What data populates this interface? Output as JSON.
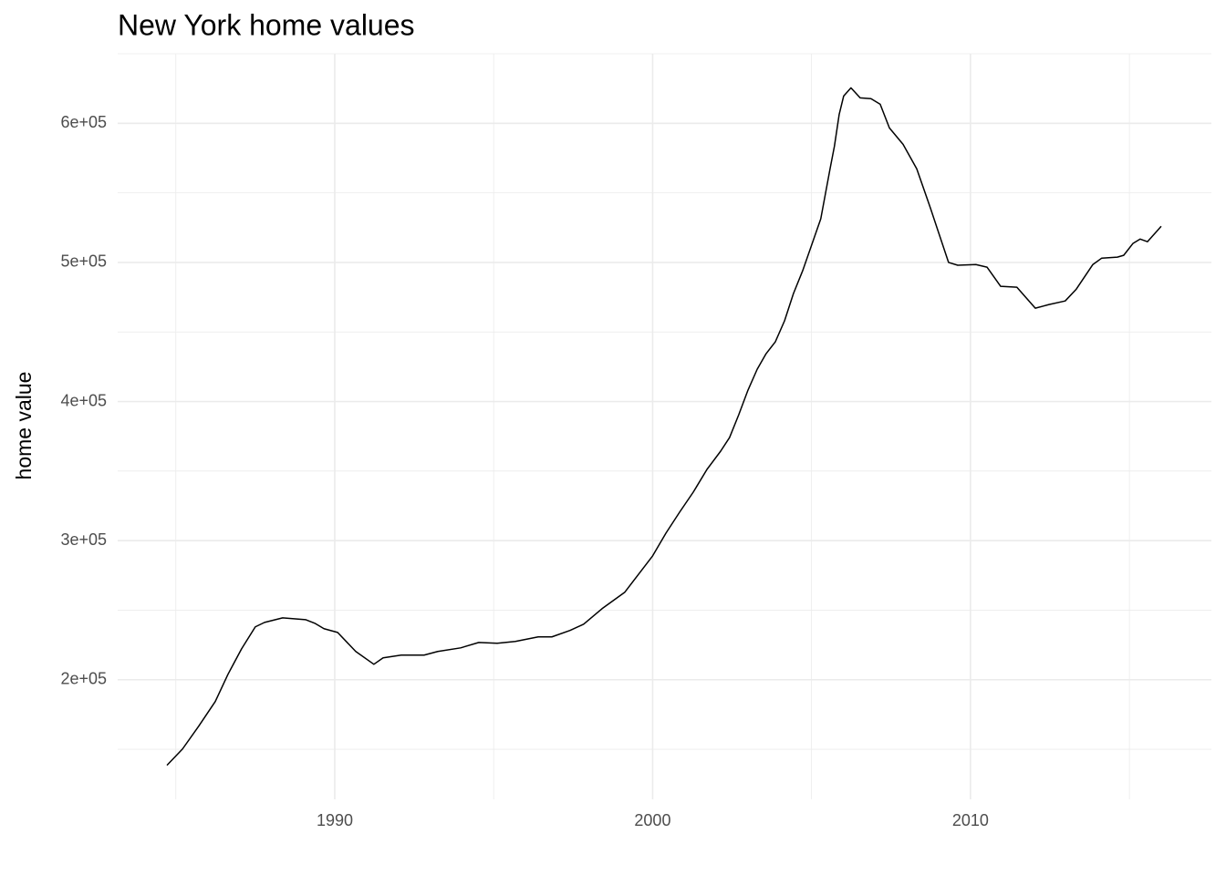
{
  "chart_data": {
    "type": "line",
    "title": "New York home values",
    "y_label": "home value",
    "x": [
      1984.72,
      1985.21,
      1985.72,
      1986.24,
      1986.64,
      1987.07,
      1987.5,
      1987.79,
      1988.36,
      1989.08,
      1989.37,
      1989.66,
      1990.09,
      1990.66,
      1991.23,
      1991.52,
      1992.09,
      1992.81,
      1993.24,
      1993.96,
      1994.53,
      1995.11,
      1995.68,
      1996.4,
      1996.83,
      1997.4,
      1997.83,
      1998.41,
      1999.12,
      1999.56,
      2000.0,
      2000.42,
      2000.85,
      2001.28,
      2001.71,
      2002.14,
      2002.42,
      2002.71,
      2003.0,
      2003.29,
      2003.57,
      2003.86,
      2004.15,
      2004.43,
      2004.72,
      2005.01,
      2005.29,
      2005.58,
      2005.72,
      2005.87,
      2006.01,
      2006.24,
      2006.53,
      2006.87,
      2007.16,
      2007.45,
      2007.88,
      2008.31,
      2008.74,
      2009.31,
      2009.6,
      2010.17,
      2010.52,
      2010.95,
      2011.46,
      2012.04,
      2012.47,
      2012.98,
      2013.33,
      2013.85,
      2014.13,
      2014.62,
      2014.82,
      2015.11,
      2015.34,
      2015.57,
      2015.8,
      2016.0
    ],
    "series": [
      {
        "color": "#000000",
        "values": [
          138500,
          150200,
          166600,
          184300,
          203900,
          222300,
          238000,
          241200,
          244500,
          243200,
          240600,
          236700,
          234000,
          220300,
          211100,
          215700,
          217700,
          217700,
          220300,
          222900,
          226800,
          226200,
          227500,
          230800,
          230800,
          235400,
          239900,
          251100,
          262800,
          275900,
          289000,
          305400,
          320500,
          334900,
          351200,
          364300,
          374100,
          390500,
          408200,
          423200,
          434400,
          442900,
          458000,
          477600,
          494000,
          513000,
          531300,
          567000,
          583600,
          606500,
          619600,
          625500,
          618300,
          617700,
          613700,
          596700,
          584900,
          567300,
          539100,
          500000,
          498000,
          498500,
          496600,
          482800,
          482200,
          467100,
          469700,
          472300,
          480800,
          498500,
          503100,
          503800,
          505100,
          513600,
          516800,
          514900,
          520800,
          526000
        ]
      }
    ],
    "xlim": [
      1983.17,
      2017.58
    ],
    "xticks": [
      1990,
      2000,
      2010
    ],
    "x_minor_grid": [
      1985,
      1995,
      2005,
      2015
    ],
    "ylim": [
      114000,
      650000
    ],
    "yticks": [
      {
        "value": 200000,
        "label": "2e+05"
      },
      {
        "value": 300000,
        "label": "3e+05"
      },
      {
        "value": 400000,
        "label": "4e+05"
      },
      {
        "value": 500000,
        "label": "5e+05"
      },
      {
        "value": 600000,
        "label": "6e+05"
      }
    ],
    "y_minor_grid": [
      150000,
      250000,
      350000,
      450000,
      550000,
      650000
    ],
    "grid": true
  }
}
